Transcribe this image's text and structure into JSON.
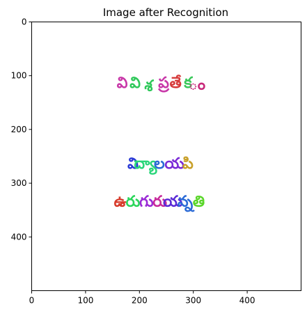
{
  "chart_data": {
    "type": "image",
    "title": "Image after Recognition",
    "xlim": [
      0,
      500
    ],
    "ylim": [
      500,
      0
    ],
    "xticks": [
      0,
      100,
      200,
      300,
      400
    ],
    "yticks": [
      0,
      100,
      200,
      300,
      400
    ],
    "grid": false,
    "background": "#ffffff",
    "glyphs": [
      {
        "char": "వి",
        "x": 168,
        "y": 112,
        "color": "#c837a8"
      },
      {
        "char": "వి",
        "x": 192,
        "y": 112,
        "color": "#2fc85a"
      },
      {
        "char": "శ",
        "x": 217,
        "y": 118,
        "color": "#2fc85a"
      },
      {
        "char": "ప్ర",
        "x": 245,
        "y": 112,
        "color": "#c837a8"
      },
      {
        "char": "తే",
        "x": 267,
        "y": 112,
        "color": "#d63a3a"
      },
      {
        "char": "క",
        "x": 290,
        "y": 112,
        "color": "#3ac85a"
      },
      {
        "char": "ం",
        "x": 307,
        "y": 115,
        "color": "#c8287a"
      },
      {
        "char": "వి",
        "x": 188,
        "y": 262,
        "color": "#2a3ad6"
      },
      {
        "char": "ద్యా",
        "x": 211,
        "y": 262,
        "color": "#2ad67a"
      },
      {
        "char": "ల",
        "x": 237,
        "y": 262,
        "color": "#2a6ad6"
      },
      {
        "char": "య",
        "x": 265,
        "y": 262,
        "color": "#7a2ad6"
      },
      {
        "char": "పి",
        "x": 290,
        "y": 262,
        "color": "#c8a02a"
      },
      {
        "char": "ఉ",
        "x": 164,
        "y": 333,
        "color": "#d63a2a"
      },
      {
        "char": "రు",
        "x": 188,
        "y": 333,
        "color": "#2ad65a"
      },
      {
        "char": "గు",
        "x": 213,
        "y": 333,
        "color": "#9a2ad6"
      },
      {
        "char": "రు",
        "x": 238,
        "y": 333,
        "color": "#c82a9a"
      },
      {
        "char": "య",
        "x": 262,
        "y": 333,
        "color": "#5a2ad6"
      },
      {
        "char": "న్న",
        "x": 285,
        "y": 333,
        "color": "#2a6ad6"
      },
      {
        "char": "తి",
        "x": 310,
        "y": 333,
        "color": "#5ad62a"
      }
    ]
  }
}
